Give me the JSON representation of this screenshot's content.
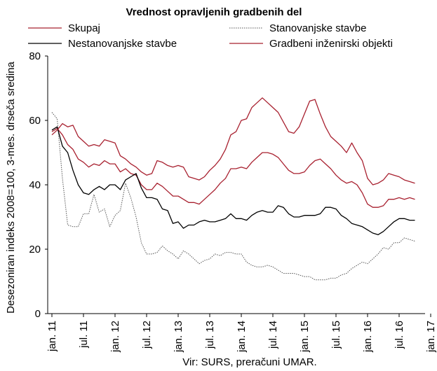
{
  "chart_data": {
    "type": "line",
    "title": "Vrednost opravljenih gradbenih del",
    "ylabel": "Desezoniran indeks 2008=100, 3-mes. drseča sredina",
    "xlabel": "",
    "source": "Vir: SURS, preračuni UMAR.",
    "ylim": [
      0,
      80
    ],
    "y_ticks": [
      "0",
      "20",
      "40",
      "60",
      "80"
    ],
    "x_ticks": [
      "jan. 11",
      "jul. 11",
      "jan. 12",
      "jul. 12",
      "jan. 13",
      "jul. 13",
      "jan. 14",
      "jul. 14",
      "jan. 15",
      "jul. 15",
      "jan. 16",
      "jul. 16",
      "jan. 17"
    ],
    "grid": false,
    "legend_position": "top",
    "x": [
      "2011-01",
      "2011-02",
      "2011-03",
      "2011-04",
      "2011-05",
      "2011-06",
      "2011-07",
      "2011-08",
      "2011-09",
      "2011-10",
      "2011-11",
      "2011-12",
      "2012-01",
      "2012-02",
      "2012-03",
      "2012-04",
      "2012-05",
      "2012-06",
      "2012-07",
      "2012-08",
      "2012-09",
      "2012-10",
      "2012-11",
      "2012-12",
      "2013-01",
      "2013-02",
      "2013-03",
      "2013-04",
      "2013-05",
      "2013-06",
      "2013-07",
      "2013-08",
      "2013-09",
      "2013-10",
      "2013-11",
      "2013-12",
      "2014-01",
      "2014-02",
      "2014-03",
      "2014-04",
      "2014-05",
      "2014-06",
      "2014-07",
      "2014-08",
      "2014-09",
      "2014-10",
      "2014-11",
      "2014-12",
      "2015-01",
      "2015-02",
      "2015-03",
      "2015-04",
      "2015-05",
      "2015-06",
      "2015-07",
      "2015-08",
      "2015-09",
      "2015-10",
      "2015-11",
      "2015-12",
      "2016-01",
      "2016-02",
      "2016-03",
      "2016-04",
      "2016-05",
      "2016-06",
      "2016-07",
      "2016-08",
      "2016-09",
      "2016-10"
    ],
    "series": [
      {
        "name": "Skupaj",
        "color": "#a8202f",
        "style": "solid",
        "values": [
          56.5,
          57.5,
          55.5,
          52.5,
          51,
          48,
          47,
          45.5,
          46.5,
          46,
          47.5,
          46.5,
          46.5,
          44,
          45,
          43.5,
          43,
          40,
          38.5,
          38.5,
          40.5,
          39.5,
          38,
          36.5,
          36.5,
          35.5,
          34.5,
          34.5,
          34,
          35.5,
          37,
          38.5,
          40.5,
          42,
          45,
          45,
          45.5,
          45,
          47,
          48.5,
          50,
          50,
          49.5,
          48.5,
          46.5,
          44.5,
          43.5,
          43.5,
          44,
          46,
          47.5,
          48,
          46.5,
          45,
          43,
          41.5,
          40.5,
          41,
          40,
          37.5,
          34,
          33,
          33,
          33.5,
          35.5,
          35.5,
          36,
          35.5,
          36,
          35.5
        ]
      },
      {
        "name": "Stanovanjske stavbe",
        "color": "#555555",
        "style": "dotted",
        "values": [
          62.5,
          60.5,
          42,
          27.5,
          27,
          27,
          31,
          31,
          37,
          31.5,
          32.5,
          27,
          30.5,
          32,
          40.5,
          36,
          30,
          22,
          18.5,
          18.5,
          19,
          21,
          19.5,
          18.5,
          17,
          19.5,
          18.5,
          17,
          15.5,
          16.5,
          17,
          18.5,
          18,
          19,
          19,
          18.5,
          18.5,
          16,
          15,
          14.5,
          14.5,
          15,
          14.5,
          13.5,
          12.5,
          12.5,
          12.5,
          12,
          11.5,
          11.5,
          10.5,
          10.5,
          10.5,
          11,
          11,
          12,
          12.5,
          14,
          15,
          16,
          15.5,
          17,
          18.5,
          20.5,
          20,
          22,
          22,
          23.5,
          23,
          22.5
        ]
      },
      {
        "name": "Nestanovanjske stavbe",
        "color": "#000000",
        "style": "solid",
        "values": [
          57,
          58,
          52,
          50,
          44.5,
          40,
          37.5,
          37,
          38.5,
          39.5,
          38.5,
          40,
          40,
          38.5,
          41.5,
          42.5,
          43.5,
          39,
          36,
          36,
          35.5,
          32.5,
          32,
          28,
          28.5,
          26.5,
          27.5,
          27.5,
          28.5,
          29,
          28.5,
          28.5,
          29,
          29.5,
          31,
          29.5,
          29.5,
          29,
          30.5,
          31.5,
          32,
          31.5,
          31.5,
          33.5,
          33,
          31,
          30,
          30,
          30.5,
          30.5,
          30.5,
          31,
          33,
          33,
          32.5,
          30.5,
          29.5,
          28,
          27.5,
          27,
          26,
          25,
          24.5,
          25.5,
          27,
          28.5,
          29.5,
          29.5,
          29,
          29
        ]
      },
      {
        "name": "Gradbeni inženirski objekti",
        "color": "#a8202f",
        "style": "solid",
        "values": [
          55.5,
          57,
          59,
          58,
          58.5,
          55,
          53.5,
          52,
          52.5,
          52,
          54,
          53.5,
          53,
          49,
          48,
          46.5,
          45.5,
          44,
          43,
          43.5,
          47.5,
          47,
          46,
          45.5,
          46,
          45.5,
          42.5,
          42,
          41.5,
          42.5,
          44.5,
          46,
          48,
          51,
          55.5,
          56.5,
          60,
          60.5,
          64,
          65.5,
          67,
          65.5,
          64,
          62.5,
          59.5,
          56.5,
          56,
          58,
          62,
          66,
          66.5,
          62,
          58,
          55,
          53.5,
          52,
          50,
          53,
          50,
          47.5,
          42,
          40,
          40.5,
          41.5,
          43.5,
          43,
          42.5,
          41.5,
          41,
          40.5
        ]
      }
    ]
  }
}
